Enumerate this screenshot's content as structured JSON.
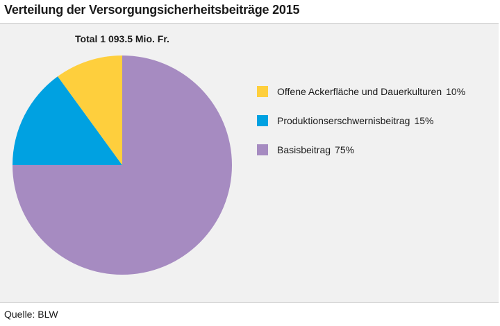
{
  "chart_data": {
    "type": "pie",
    "title": "Verteilung der Versorgungsicherheitsbeiträge 2015",
    "subtitle": "Total 1 093.5 Mio. Fr.",
    "slices": [
      {
        "label": "Basisbeitrag",
        "value": 75,
        "value_label": "75%",
        "color": "#a68bc1"
      },
      {
        "label": "Produktionserschwernisbeitrag",
        "value": 15,
        "value_label": "15%",
        "color": "#00a1e1"
      },
      {
        "label": "Offene Ackerfläche und Dauerkulturen",
        "value": 10,
        "value_label": "10%",
        "color": "#fecf3d"
      }
    ],
    "legend_order": [
      2,
      1,
      0
    ],
    "legend_position": "right"
  },
  "source": "Quelle: BLW"
}
